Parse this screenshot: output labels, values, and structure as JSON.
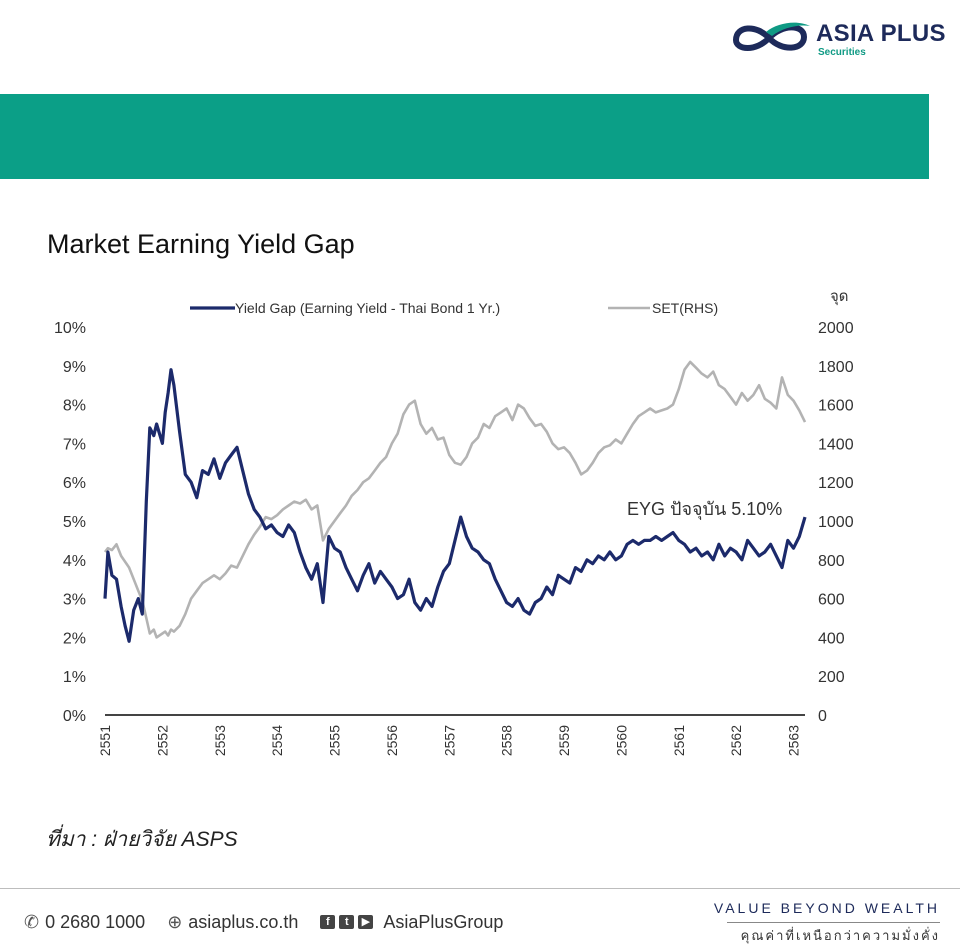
{
  "brand": {
    "name": "ASIA PLUS",
    "sub": "Securities"
  },
  "source_text": "ที่มา : ฝ่ายวิจัย ASPS",
  "footer": {
    "phone": "0 2680 1000",
    "website": "asiaplus.co.th",
    "social": "AsiaPlusGroup",
    "tagline": "VALUE BEYOND WEALTH",
    "tagline_th": "คุณค่าที่เหนือกว่าความมั่งคั่ง"
  },
  "colors": {
    "band": "#0b9f87",
    "yield_gap": "#1c2a6b",
    "set": "#b3b3b3",
    "brand_navy": "#1d2a5a",
    "brand_teal": "#0f9a84"
  },
  "chart_data": {
    "type": "line",
    "title": "Market Earning Yield Gap",
    "x_ticks": [
      "2551",
      "2552",
      "2553",
      "2554",
      "2555",
      "2556",
      "2557",
      "2558",
      "2559",
      "2560",
      "2561",
      "2562",
      "2563"
    ],
    "xlim": [
      2551,
      2563.2
    ],
    "ylim_left": [
      0,
      10
    ],
    "ylim_right": [
      0,
      2000
    ],
    "y_ticks_left": [
      "0%",
      "1%",
      "2%",
      "3%",
      "4%",
      "5%",
      "6%",
      "7%",
      "8%",
      "9%",
      "10%"
    ],
    "y_ticks_right": [
      "0",
      "200",
      "400",
      "600",
      "800",
      "1000",
      "1200",
      "1400",
      "1600",
      "1800",
      "2000"
    ],
    "y_unit_right": "จุด",
    "legend_position": "top",
    "annotation": "EYG ปัจจุบัน 5.10%",
    "series": [
      {
        "name": "Yield Gap (Earning Yield - Thai Bond 1 Yr.)",
        "axis": "left",
        "x": [
          2551.0,
          2551.05,
          2551.12,
          2551.2,
          2551.28,
          2551.35,
          2551.42,
          2551.5,
          2551.58,
          2551.65,
          2551.72,
          2551.78,
          2551.85,
          2551.9,
          2552.0,
          2552.05,
          2552.1,
          2552.15,
          2552.2,
          2552.3,
          2552.4,
          2552.5,
          2552.6,
          2552.7,
          2552.8,
          2552.9,
          2553.0,
          2553.1,
          2553.2,
          2553.3,
          2553.4,
          2553.5,
          2553.6,
          2553.7,
          2553.8,
          2553.9,
          2554.0,
          2554.1,
          2554.2,
          2554.3,
          2554.4,
          2554.5,
          2554.6,
          2554.7,
          2554.8,
          2554.9,
          2555.0,
          2555.1,
          2555.2,
          2555.3,
          2555.4,
          2555.5,
          2555.6,
          2555.7,
          2555.8,
          2555.9,
          2556.0,
          2556.1,
          2556.2,
          2556.3,
          2556.4,
          2556.5,
          2556.6,
          2556.7,
          2556.8,
          2556.9,
          2557.0,
          2557.1,
          2557.2,
          2557.3,
          2557.4,
          2557.5,
          2557.6,
          2557.7,
          2557.8,
          2557.9,
          2558.0,
          2558.1,
          2558.2,
          2558.3,
          2558.4,
          2558.5,
          2558.6,
          2558.7,
          2558.8,
          2558.9,
          2559.0,
          2559.1,
          2559.2,
          2559.3,
          2559.4,
          2559.5,
          2559.6,
          2559.7,
          2559.8,
          2559.9,
          2560.0,
          2560.1,
          2560.2,
          2560.3,
          2560.4,
          2560.5,
          2560.6,
          2560.7,
          2560.8,
          2560.9,
          2561.0,
          2561.1,
          2561.2,
          2561.3,
          2561.4,
          2561.5,
          2561.6,
          2561.7,
          2561.8,
          2561.9,
          2562.0,
          2562.1,
          2562.2,
          2562.3,
          2562.4,
          2562.5,
          2562.6,
          2562.7,
          2562.8,
          2562.9,
          2563.0,
          2563.1,
          2563.2
        ],
        "values": [
          3.0,
          4.2,
          3.6,
          3.5,
          2.8,
          2.3,
          1.9,
          2.7,
          3.0,
          2.6,
          5.5,
          7.4,
          7.2,
          7.5,
          7.0,
          7.8,
          8.3,
          8.9,
          8.5,
          7.3,
          6.2,
          6.0,
          5.6,
          6.3,
          6.2,
          6.6,
          6.1,
          6.5,
          6.7,
          6.9,
          6.3,
          5.7,
          5.3,
          5.1,
          4.8,
          4.9,
          4.7,
          4.6,
          4.9,
          4.7,
          4.2,
          3.8,
          3.5,
          3.9,
          2.9,
          4.6,
          4.3,
          4.2,
          3.8,
          3.5,
          3.2,
          3.6,
          3.9,
          3.4,
          3.7,
          3.5,
          3.3,
          3.0,
          3.1,
          3.5,
          2.9,
          2.7,
          3.0,
          2.8,
          3.3,
          3.7,
          3.9,
          4.5,
          5.1,
          4.6,
          4.3,
          4.2,
          4.0,
          3.9,
          3.5,
          3.2,
          2.9,
          2.8,
          3.0,
          2.7,
          2.6,
          2.9,
          3.0,
          3.3,
          3.1,
          3.6,
          3.5,
          3.4,
          3.8,
          3.7,
          4.0,
          3.9,
          4.1,
          4.0,
          4.2,
          4.0,
          4.1,
          4.4,
          4.5,
          4.4,
          4.5,
          4.5,
          4.6,
          4.5,
          4.6,
          4.7,
          4.5,
          4.4,
          4.2,
          4.3,
          4.1,
          4.2,
          4.0,
          4.4,
          4.1,
          4.3,
          4.2,
          4.0,
          4.5,
          4.3,
          4.1,
          4.2,
          4.4,
          4.1,
          3.8,
          4.5,
          4.3,
          4.6,
          5.1
        ]
      },
      {
        "name": "SET(RHS)",
        "axis": "right",
        "x": [
          2551.0,
          2551.05,
          2551.12,
          2551.2,
          2551.28,
          2551.35,
          2551.42,
          2551.5,
          2551.58,
          2551.65,
          2551.72,
          2551.78,
          2551.85,
          2551.9,
          2552.0,
          2552.05,
          2552.1,
          2552.15,
          2552.2,
          2552.3,
          2552.4,
          2552.5,
          2552.6,
          2552.7,
          2552.8,
          2552.9,
          2553.0,
          2553.1,
          2553.2,
          2553.3,
          2553.4,
          2553.5,
          2553.6,
          2553.7,
          2553.8,
          2553.9,
          2554.0,
          2554.1,
          2554.2,
          2554.3,
          2554.4,
          2554.5,
          2554.6,
          2554.7,
          2554.8,
          2554.9,
          2555.0,
          2555.1,
          2555.2,
          2555.3,
          2555.4,
          2555.5,
          2555.6,
          2555.7,
          2555.8,
          2555.9,
          2556.0,
          2556.1,
          2556.2,
          2556.3,
          2556.4,
          2556.5,
          2556.6,
          2556.7,
          2556.8,
          2556.9,
          2557.0,
          2557.1,
          2557.2,
          2557.3,
          2557.4,
          2557.5,
          2557.6,
          2557.7,
          2557.8,
          2557.9,
          2558.0,
          2558.1,
          2558.2,
          2558.3,
          2558.4,
          2558.5,
          2558.6,
          2558.7,
          2558.8,
          2558.9,
          2559.0,
          2559.1,
          2559.2,
          2559.3,
          2559.4,
          2559.5,
          2559.6,
          2559.7,
          2559.8,
          2559.9,
          2560.0,
          2560.1,
          2560.2,
          2560.3,
          2560.4,
          2560.5,
          2560.6,
          2560.7,
          2560.8,
          2560.9,
          2561.0,
          2561.1,
          2561.2,
          2561.3,
          2561.4,
          2561.5,
          2561.6,
          2561.7,
          2561.8,
          2561.9,
          2562.0,
          2562.1,
          2562.2,
          2562.3,
          2562.4,
          2562.5,
          2562.6,
          2562.7,
          2562.8,
          2562.9,
          2563.0,
          2563.1,
          2563.2
        ],
        "values": [
          840,
          860,
          850,
          880,
          820,
          790,
          760,
          700,
          640,
          590,
          500,
          420,
          440,
          400,
          420,
          430,
          410,
          440,
          430,
          460,
          520,
          600,
          640,
          680,
          700,
          720,
          700,
          730,
          770,
          760,
          820,
          880,
          930,
          970,
          1020,
          1010,
          1030,
          1060,
          1080,
          1100,
          1090,
          1110,
          1060,
          1080,
          900,
          960,
          1000,
          1040,
          1080,
          1130,
          1160,
          1200,
          1220,
          1260,
          1300,
          1330,
          1400,
          1450,
          1550,
          1600,
          1620,
          1500,
          1450,
          1480,
          1420,
          1430,
          1340,
          1300,
          1290,
          1330,
          1400,
          1430,
          1500,
          1480,
          1540,
          1560,
          1580,
          1520,
          1600,
          1580,
          1530,
          1490,
          1500,
          1460,
          1400,
          1370,
          1380,
          1350,
          1300,
          1240,
          1260,
          1300,
          1350,
          1380,
          1390,
          1420,
          1400,
          1450,
          1500,
          1540,
          1560,
          1580,
          1560,
          1570,
          1580,
          1600,
          1680,
          1780,
          1820,
          1790,
          1760,
          1740,
          1770,
          1700,
          1680,
          1640,
          1600,
          1660,
          1620,
          1650,
          1700,
          1630,
          1610,
          1580,
          1740,
          1650,
          1620,
          1570,
          1510
        ]
      }
    ]
  }
}
